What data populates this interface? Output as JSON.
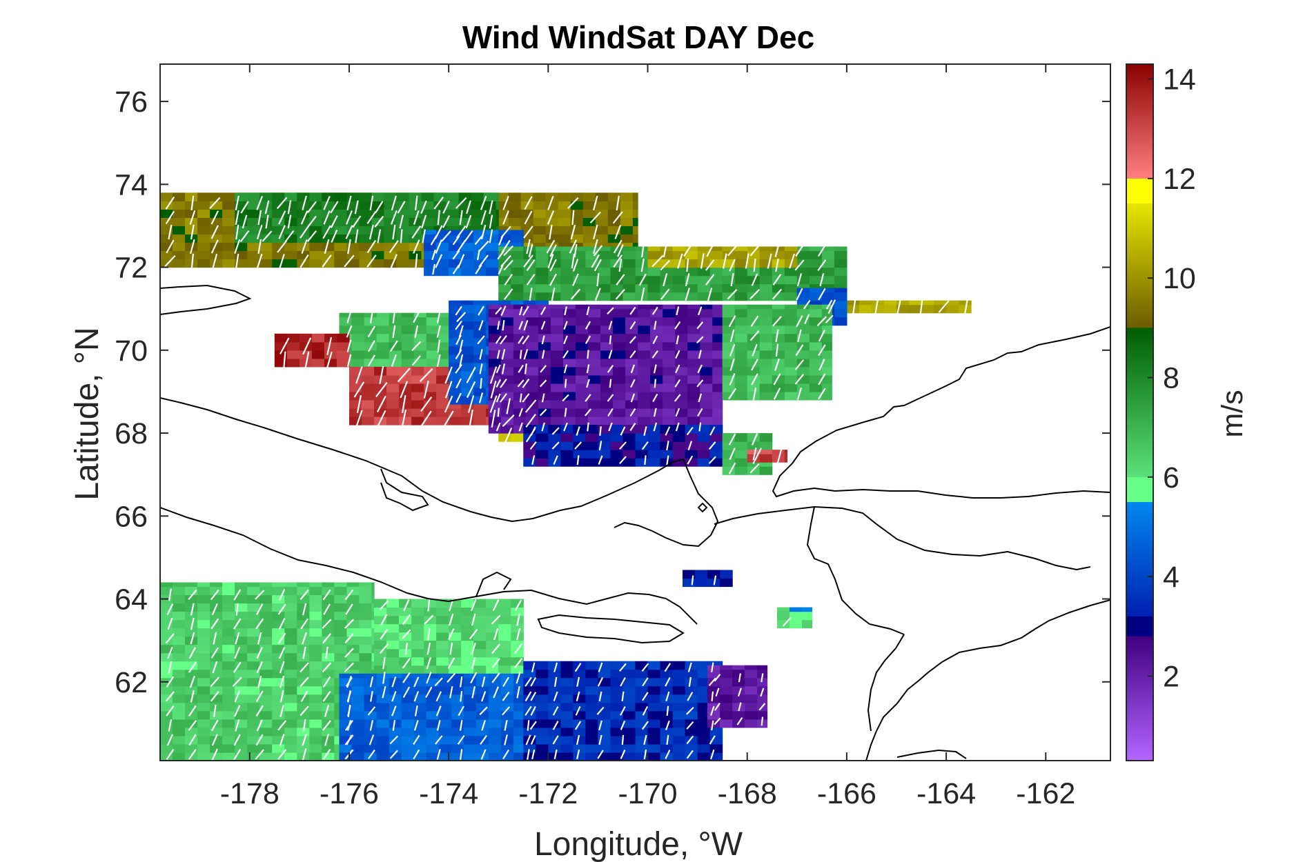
{
  "figure": {
    "title": "Wind WindSat DAY Dec",
    "xlabel": "Longitude, °W",
    "ylabel": "Latitude, °N",
    "colorbar_label": "m/s"
  },
  "chart_data": {
    "type": "heatmap",
    "title": "Wind WindSat DAY Dec",
    "xlabel": "Longitude, °W",
    "ylabel": "Latitude, °N",
    "xlim": [
      -179.8,
      -160.7
    ],
    "ylim": [
      60.1,
      76.9
    ],
    "xticks": [
      -178,
      -176,
      -174,
      -172,
      -170,
      -168,
      -166,
      -164,
      -162
    ],
    "yticks": [
      62,
      64,
      66,
      68,
      70,
      72,
      74,
      76
    ],
    "xtick_labels": [
      "-178",
      "-176",
      "-174",
      "-172",
      "-170",
      "-168",
      "-166",
      "-164",
      "-162"
    ],
    "ytick_labels": [
      "62",
      "64",
      "66",
      "68",
      "70",
      "72",
      "74",
      "76"
    ],
    "colorbar": {
      "label": "m/s",
      "range": [
        0.3,
        14.3
      ],
      "ticks": [
        2,
        4,
        6,
        8,
        10,
        12,
        14
      ],
      "tick_labels": [
        "2",
        "4",
        "6",
        "8",
        "10",
        "12",
        "14"
      ],
      "bands": [
        {
          "from": 0.3,
          "to": 2.8,
          "color_low": "#b266ff",
          "color_high": "#400080"
        },
        {
          "from": 2.8,
          "to": 3.2,
          "color_low": "#000080",
          "color_high": "#000080"
        },
        {
          "from": 3.2,
          "to": 5.5,
          "color_low": "#0020b0",
          "color_high": "#0088ee"
        },
        {
          "from": 5.5,
          "to": 6.0,
          "color_low": "#66ff88",
          "color_high": "#66ff88"
        },
        {
          "from": 6.0,
          "to": 9.0,
          "color_low": "#5be07a",
          "color_high": "#005c00"
        },
        {
          "from": 9.0,
          "to": 11.5,
          "color_low": "#6b5c00",
          "color_high": "#e6e600"
        },
        {
          "from": 11.5,
          "to": 12.0,
          "color_low": "#ffff00",
          "color_high": "#ffff00"
        },
        {
          "from": 12.0,
          "to": 14.3,
          "color_low": "#ff8080",
          "color_high": "#8b0000"
        }
      ]
    },
    "wind_regions": [
      {
        "lon_min": -179.8,
        "lon_max": -170.2,
        "lat_min": 72.0,
        "lat_max": 73.8,
        "speed": 9.5
      },
      {
        "lon_min": -178.3,
        "lon_max": -173.0,
        "lat_min": 72.6,
        "lat_max": 73.8,
        "speed": 8.2
      },
      {
        "lon_min": -174.5,
        "lon_max": -172.5,
        "lat_min": 71.8,
        "lat_max": 72.9,
        "speed": 4.6
      },
      {
        "lon_min": -173.0,
        "lon_max": -166.0,
        "lat_min": 71.2,
        "lat_max": 72.5,
        "speed": 7.5
      },
      {
        "lon_min": -170.0,
        "lon_max": -167.0,
        "lat_min": 72.0,
        "lat_max": 72.5,
        "speed": 10.3
      },
      {
        "lon_min": -166.5,
        "lon_max": -163.5,
        "lat_min": 70.9,
        "lat_max": 71.2,
        "speed": 10.2
      },
      {
        "lon_min": -167.0,
        "lon_max": -166.0,
        "lat_min": 70.6,
        "lat_max": 71.5,
        "speed": 4.2
      },
      {
        "lon_min": -176.2,
        "lon_max": -173.5,
        "lat_min": 69.6,
        "lat_max": 70.9,
        "speed": 6.8
      },
      {
        "lon_min": -177.5,
        "lon_max": -176.0,
        "lat_min": 69.6,
        "lat_max": 70.4,
        "speed": 13.6
      },
      {
        "lon_min": -176.0,
        "lon_max": -173.0,
        "lat_min": 68.2,
        "lat_max": 69.6,
        "speed": 13.3
      },
      {
        "lon_min": -173.0,
        "lon_max": -172.0,
        "lat_min": 67.8,
        "lat_max": 69.0,
        "speed": 11.0
      },
      {
        "lon_min": -174.0,
        "lon_max": -172.0,
        "lat_min": 68.7,
        "lat_max": 71.2,
        "speed": 4.4
      },
      {
        "lon_min": -173.2,
        "lon_max": -168.5,
        "lat_min": 68.0,
        "lat_max": 71.1,
        "speed": 2.3
      },
      {
        "lon_min": -172.5,
        "lon_max": -168.5,
        "lat_min": 67.2,
        "lat_max": 68.2,
        "speed": 3.1
      },
      {
        "lon_min": -168.5,
        "lon_max": -166.3,
        "lat_min": 68.8,
        "lat_max": 71.1,
        "speed": 6.9
      },
      {
        "lon_min": -168.5,
        "lon_max": -167.5,
        "lat_min": 67.0,
        "lat_max": 68.0,
        "speed": 7.0
      },
      {
        "lon_min": -168.0,
        "lon_max": -167.2,
        "lat_min": 67.3,
        "lat_max": 67.6,
        "speed": 13.0
      },
      {
        "lon_min": -169.3,
        "lon_max": -168.3,
        "lat_min": 64.3,
        "lat_max": 64.7,
        "speed": 3.2
      },
      {
        "lon_min": -167.4,
        "lon_max": -166.7,
        "lat_min": 63.3,
        "lat_max": 63.8,
        "speed": 5.8
      },
      {
        "lon_min": -179.8,
        "lon_max": -175.5,
        "lat_min": 60.1,
        "lat_max": 64.4,
        "speed": 6.5
      },
      {
        "lon_min": -175.5,
        "lon_max": -172.5,
        "lat_min": 61.6,
        "lat_max": 64.0,
        "speed": 6.3
      },
      {
        "lon_min": -176.2,
        "lon_max": -172.0,
        "lat_min": 60.1,
        "lat_max": 62.2,
        "speed": 4.6
      },
      {
        "lon_min": -172.5,
        "lon_max": -168.5,
        "lat_min": 60.1,
        "lat_max": 62.5,
        "speed": 3.5
      },
      {
        "lon_min": -168.8,
        "lon_max": -167.6,
        "lat_min": 60.9,
        "lat_max": 62.4,
        "speed": 2.2
      }
    ]
  }
}
